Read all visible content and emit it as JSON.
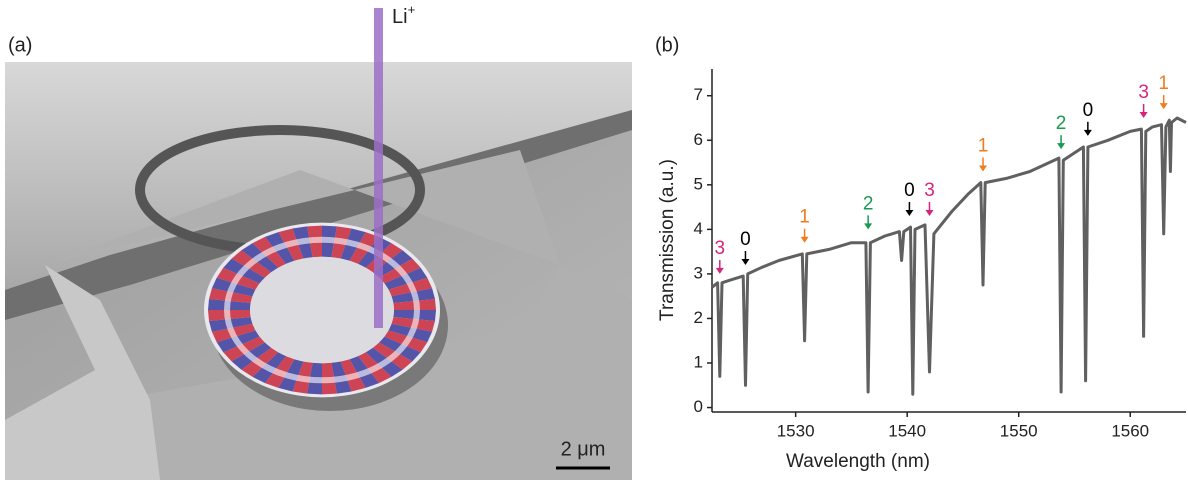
{
  "panel_a": {
    "label": "(a)",
    "beam_label": "Li",
    "beam_sup": "+",
    "scale_label": "2 μm"
  },
  "chart_data": {
    "type": "line",
    "panel_label": "(b)",
    "x_label": "Wavelength (nm)",
    "y_label": "Transmission (a.u.)",
    "xlim": [
      1522.5,
      1565
    ],
    "ylim": [
      -0.1,
      7.6
    ],
    "xticks": [
      1530,
      1540,
      1550,
      1560
    ],
    "yticks": [
      0,
      1,
      2,
      3,
      4,
      5,
      6,
      7
    ],
    "x": [
      1522.5,
      1523.0,
      1523.2,
      1523.4,
      1524,
      1525.3,
      1525.5,
      1525.7,
      1527,
      1528.5,
      1530.6,
      1530.8,
      1531.0,
      1533,
      1535,
      1536.3,
      1536.5,
      1536.7,
      1538,
      1539.3,
      1539.5,
      1539.7,
      1540.3,
      1540.5,
      1540.7,
      1541.6,
      1542,
      1542.4,
      1544,
      1545.5,
      1546.6,
      1546.8,
      1547.0,
      1549,
      1551,
      1553.6,
      1553.8,
      1554.0,
      1555.5,
      1555.8,
      1556.0,
      1556.2,
      1558,
      1560,
      1561.0,
      1561.2,
      1561.4,
      1562,
      1562.8,
      1563.0,
      1563.2,
      1563.5,
      1563.6,
      1563.7,
      1564.2,
      1565
    ],
    "series": [
      {
        "color": "#606060",
        "values": [
          2.7,
          2.8,
          0.7,
          2.8,
          2.85,
          2.95,
          0.5,
          3.0,
          3.15,
          3.3,
          3.45,
          1.5,
          3.45,
          3.55,
          3.7,
          3.7,
          0.35,
          3.7,
          3.85,
          3.95,
          3.3,
          3.95,
          4.05,
          0.3,
          4.0,
          4.1,
          0.8,
          3.9,
          4.4,
          4.8,
          5.05,
          2.75,
          5.05,
          5.15,
          5.3,
          5.6,
          0.35,
          5.55,
          5.8,
          5.85,
          0.6,
          5.85,
          6.0,
          6.2,
          6.25,
          1.6,
          6.2,
          6.3,
          6.35,
          3.9,
          6.3,
          6.45,
          5.3,
          6.4,
          6.5,
          6.4
        ]
      }
    ],
    "annotations": [
      {
        "label": "3",
        "x": 1523.2,
        "y": 3.0,
        "color": "#d6247d"
      },
      {
        "label": "0",
        "x": 1525.5,
        "y": 3.2,
        "color": "#000000"
      },
      {
        "label": "1",
        "x": 1530.8,
        "y": 3.7,
        "color": "#f07c1e"
      },
      {
        "label": "2",
        "x": 1536.5,
        "y": 4.0,
        "color": "#1a9a50"
      },
      {
        "label": "0",
        "x": 1540.2,
        "y": 4.3,
        "color": "#000000"
      },
      {
        "label": "3",
        "x": 1542,
        "y": 4.3,
        "color": "#d6247d"
      },
      {
        "label": "1",
        "x": 1546.8,
        "y": 5.3,
        "color": "#f07c1e"
      },
      {
        "label": "2",
        "x": 1553.8,
        "y": 5.8,
        "color": "#1a9a50"
      },
      {
        "label": "0",
        "x": 1556.2,
        "y": 6.1,
        "color": "#000000"
      },
      {
        "label": "3",
        "x": 1561.2,
        "y": 6.5,
        "color": "#d6247d"
      },
      {
        "label": "1",
        "x": 1563,
        "y": 6.7,
        "color": "#f07c1e"
      }
    ]
  }
}
